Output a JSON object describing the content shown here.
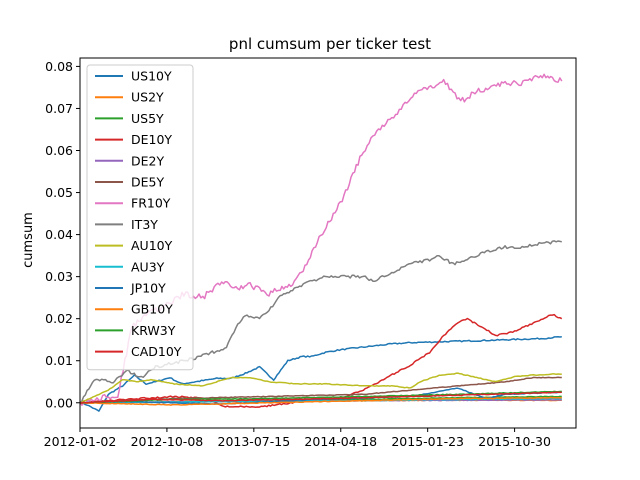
{
  "chart_data": {
    "type": "line",
    "title": "pnl cumsum per ticker test",
    "xlabel": "",
    "ylabel": "cumsum",
    "x_ticks": [
      "2012-01-02",
      "2012-10-08",
      "2013-07-15",
      "2014-04-18",
      "2015-01-23",
      "2015-10-30"
    ],
    "xlim": [
      0,
      1050
    ],
    "ylim": [
      -0.006,
      0.082
    ],
    "y_ticks": [
      0.0,
      0.01,
      0.02,
      0.03,
      0.04,
      0.05,
      0.06,
      0.07,
      0.08
    ],
    "grid": false,
    "legend_position": "upper-left",
    "series": [
      {
        "name": "US10Y",
        "color": "#1f77b4",
        "points": [
          [
            0,
            0
          ],
          [
            15,
            -0.0005
          ],
          [
            40,
            -0.002
          ],
          [
            60,
            0.002
          ],
          [
            90,
            0.004
          ],
          [
            115,
            0.0065
          ],
          [
            140,
            0.0045
          ],
          [
            160,
            0.005
          ],
          [
            190,
            0.006
          ],
          [
            215,
            0.0045
          ],
          [
            245,
            0.005
          ],
          [
            290,
            0.0058
          ],
          [
            320,
            0.0058
          ],
          [
            350,
            0.007
          ],
          [
            380,
            0.0085
          ],
          [
            410,
            0.0055
          ],
          [
            440,
            0.01
          ],
          [
            470,
            0.011
          ],
          [
            490,
            0.011
          ],
          [
            520,
            0.012
          ],
          [
            545,
            0.0125
          ],
          [
            580,
            0.013
          ],
          [
            620,
            0.0135
          ],
          [
            660,
            0.014
          ],
          [
            700,
            0.0143
          ],
          [
            760,
            0.0145
          ],
          [
            820,
            0.0147
          ],
          [
            880,
            0.0149
          ],
          [
            930,
            0.0151
          ],
          [
            980,
            0.0153
          ],
          [
            1020,
            0.0157
          ]
        ]
      },
      {
        "name": "US2Y",
        "color": "#ff7f0e",
        "points": [
          [
            0,
            0
          ],
          [
            200,
            0.0002
          ],
          [
            400,
            0.0004
          ],
          [
            600,
            0.0005
          ],
          [
            800,
            0.0006
          ],
          [
            1020,
            0.0006
          ]
        ]
      },
      {
        "name": "US5Y",
        "color": "#2ca02c",
        "points": [
          [
            0,
            0
          ],
          [
            200,
            0.0002
          ],
          [
            400,
            0.0005
          ],
          [
            600,
            0.0008
          ],
          [
            800,
            0.0012
          ],
          [
            1020,
            0.0015
          ]
        ]
      },
      {
        "name": "DE10Y",
        "color": "#d62728",
        "points": [
          [
            0,
            0
          ],
          [
            100,
            0.0008
          ],
          [
            200,
            0.0015
          ],
          [
            270,
            0.001
          ],
          [
            300,
            -0.0008
          ],
          [
            380,
            -0.001
          ],
          [
            450,
            0
          ],
          [
            500,
            0.001
          ],
          [
            550,
            0.001
          ],
          [
            600,
            0.003
          ],
          [
            650,
            0.006
          ],
          [
            700,
            0.009
          ],
          [
            740,
            0.012
          ],
          [
            770,
            0.016
          ],
          [
            800,
            0.019
          ],
          [
            820,
            0.02
          ],
          [
            850,
            0.018
          ],
          [
            880,
            0.016
          ],
          [
            920,
            0.017
          ],
          [
            960,
            0.019
          ],
          [
            1000,
            0.021
          ],
          [
            1020,
            0.02
          ]
        ]
      },
      {
        "name": "DE2Y",
        "color": "#9467bd",
        "points": [
          [
            0,
            0
          ],
          [
            300,
            0.0003
          ],
          [
            600,
            0.0005
          ],
          [
            800,
            0.0006
          ],
          [
            1020,
            0.0007
          ]
        ]
      },
      {
        "name": "DE5Y",
        "color": "#8c564b",
        "points": [
          [
            0,
            0
          ],
          [
            200,
            0.001
          ],
          [
            400,
            0.0015
          ],
          [
            600,
            0.002
          ],
          [
            700,
            0.003
          ],
          [
            800,
            0.004
          ],
          [
            900,
            0.005
          ],
          [
            960,
            0.006
          ],
          [
            1020,
            0.006
          ]
        ]
      },
      {
        "name": "FR10Y",
        "color": "#e377c2",
        "points": [
          [
            0,
            0
          ],
          [
            40,
            0.001
          ],
          [
            80,
            0.002
          ],
          [
            110,
            0.018
          ],
          [
            140,
            0.021
          ],
          [
            180,
            0.023
          ],
          [
            220,
            0.026
          ],
          [
            260,
            0.025
          ],
          [
            300,
            0.029
          ],
          [
            330,
            0.027
          ],
          [
            360,
            0.028
          ],
          [
            400,
            0.026
          ],
          [
            420,
            0.027
          ],
          [
            450,
            0.028
          ],
          [
            480,
            0.033
          ],
          [
            510,
            0.04
          ],
          [
            540,
            0.045
          ],
          [
            570,
            0.052
          ],
          [
            600,
            0.06
          ],
          [
            640,
            0.066
          ],
          [
            680,
            0.07
          ],
          [
            700,
            0.073
          ],
          [
            720,
            0.074
          ],
          [
            750,
            0.0755
          ],
          [
            770,
            0.0765
          ],
          [
            790,
            0.0735
          ],
          [
            810,
            0.072
          ],
          [
            840,
            0.074
          ],
          [
            870,
            0.075
          ],
          [
            900,
            0.076
          ],
          [
            930,
            0.076
          ],
          [
            960,
            0.077
          ],
          [
            990,
            0.078
          ],
          [
            1000,
            0.077
          ],
          [
            1020,
            0.0765
          ]
        ]
      },
      {
        "name": "IT3Y",
        "color": "#7f7f7f",
        "points": [
          [
            0,
            0
          ],
          [
            30,
            0.0055
          ],
          [
            70,
            0.005
          ],
          [
            100,
            0.0075
          ],
          [
            130,
            0.006
          ],
          [
            160,
            0.0085
          ],
          [
            200,
            0.0095
          ],
          [
            240,
            0.0105
          ],
          [
            280,
            0.012
          ],
          [
            310,
            0.013
          ],
          [
            330,
            0.018
          ],
          [
            350,
            0.021
          ],
          [
            380,
            0.02
          ],
          [
            400,
            0.022
          ],
          [
            420,
            0.025
          ],
          [
            450,
            0.027
          ],
          [
            480,
            0.0285
          ],
          [
            520,
            0.03
          ],
          [
            560,
            0.03
          ],
          [
            600,
            0.03
          ],
          [
            620,
            0.029
          ],
          [
            660,
            0.031
          ],
          [
            700,
            0.033
          ],
          [
            740,
            0.034
          ],
          [
            760,
            0.035
          ],
          [
            790,
            0.033
          ],
          [
            820,
            0.034
          ],
          [
            860,
            0.036
          ],
          [
            900,
            0.037
          ],
          [
            940,
            0.037
          ],
          [
            980,
            0.038
          ],
          [
            1020,
            0.0383
          ]
        ]
      },
      {
        "name": "AU10Y",
        "color": "#bcbd22",
        "points": [
          [
            0,
            0
          ],
          [
            60,
            0.003
          ],
          [
            90,
            0.0055
          ],
          [
            120,
            0.005
          ],
          [
            150,
            0.0055
          ],
          [
            200,
            0.0045
          ],
          [
            260,
            0.004
          ],
          [
            320,
            0.006
          ],
          [
            360,
            0.006
          ],
          [
            400,
            0.005
          ],
          [
            460,
            0.0045
          ],
          [
            520,
            0.0045
          ],
          [
            600,
            0.004
          ],
          [
            660,
            0.004
          ],
          [
            700,
            0.0035
          ],
          [
            720,
            0.005
          ],
          [
            760,
            0.0065
          ],
          [
            800,
            0.007
          ],
          [
            840,
            0.006
          ],
          [
            880,
            0.005
          ],
          [
            920,
            0.0062
          ],
          [
            960,
            0.0066
          ],
          [
            1000,
            0.0068
          ],
          [
            1020,
            0.0068
          ]
        ]
      },
      {
        "name": "AU3Y",
        "color": "#17becf",
        "points": [
          [
            0,
            0
          ],
          [
            300,
            0.0003
          ],
          [
            600,
            0.0005
          ],
          [
            800,
            0.0008
          ],
          [
            1020,
            0.001
          ]
        ]
      },
      {
        "name": "JP10Y",
        "color": "#1f77b4",
        "points": [
          [
            0,
            0
          ],
          [
            100,
            0.0003
          ],
          [
            300,
            -0.0003
          ],
          [
            500,
            0.0008
          ],
          [
            700,
            0.0015
          ],
          [
            800,
            0.0035
          ],
          [
            860,
            0.001
          ],
          [
            900,
            0.002
          ],
          [
            1020,
            0.0025
          ]
        ]
      },
      {
        "name": "GB10Y",
        "color": "#ff7f0e",
        "points": [
          [
            0,
            0
          ],
          [
            200,
            -0.0005
          ],
          [
            400,
            0
          ],
          [
            600,
            0.0005
          ],
          [
            800,
            0.001
          ],
          [
            1020,
            0.0012
          ]
        ]
      },
      {
        "name": "KRW3Y",
        "color": "#2ca02c",
        "points": [
          [
            0,
            0
          ],
          [
            200,
            0.0008
          ],
          [
            400,
            0.001
          ],
          [
            600,
            0.0015
          ],
          [
            800,
            0.002
          ],
          [
            1020,
            0.0027
          ]
        ]
      },
      {
        "name": "CAD10Y",
        "color": "#d62728",
        "points": [
          [
            0,
            0
          ],
          [
            150,
            0.0008
          ],
          [
            300,
            0.0005
          ],
          [
            450,
            0.0008
          ],
          [
            600,
            0.0012
          ],
          [
            800,
            0.0018
          ],
          [
            1020,
            0.0025
          ]
        ]
      }
    ]
  }
}
